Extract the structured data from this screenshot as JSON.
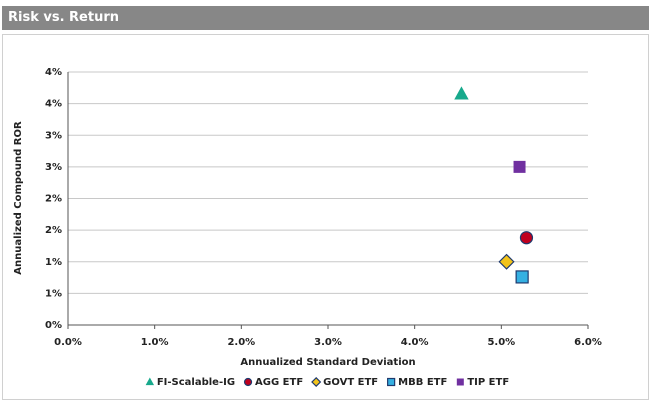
{
  "chart_data": {
    "type": "scatter",
    "title": "Risk vs. Return",
    "x_label": "Annualized Standard Deviation",
    "y_label": "Annualized Compound ROR",
    "xlim": [
      0,
      6
    ],
    "ylim": [
      0,
      4
    ],
    "xticks": [
      {
        "value": 0,
        "label": "0.0%"
      },
      {
        "value": 1,
        "label": "1.0%"
      },
      {
        "value": 2,
        "label": "2.0%"
      },
      {
        "value": 3,
        "label": "3.0%"
      },
      {
        "value": 4,
        "label": "4.0%"
      },
      {
        "value": 5,
        "label": "5.0%"
      },
      {
        "value": 6,
        "label": "6.0%"
      }
    ],
    "yticks": [
      {
        "value": 0,
        "label": "0%"
      },
      {
        "value": 0.5,
        "label": "1%"
      },
      {
        "value": 1,
        "label": "1%"
      },
      {
        "value": 1.5,
        "label": "2%"
      },
      {
        "value": 2,
        "label": "2%"
      },
      {
        "value": 2.5,
        "label": "3%"
      },
      {
        "value": 3,
        "label": "3%"
      },
      {
        "value": 3.5,
        "label": "4%"
      },
      {
        "value": 4,
        "label": "4%"
      }
    ],
    "grid": true,
    "series": [
      {
        "name": "FI-Scalable-IG",
        "marker": "triangle",
        "color": "#17a98c",
        "x": [
          4.54
        ],
        "values": [
          3.65
        ]
      },
      {
        "name": "AGG ETF",
        "marker": "circle",
        "color": "#c0001e",
        "x": [
          5.29
        ],
        "values": [
          1.38
        ]
      },
      {
        "name": "GOVT ETF",
        "marker": "diamond",
        "color": "#f2c31a",
        "x": [
          5.06
        ],
        "values": [
          1.0
        ]
      },
      {
        "name": "MBB ETF",
        "marker": "square",
        "color": "#35b0e2",
        "x": [
          5.24
        ],
        "values": [
          0.76
        ]
      },
      {
        "name": "TIP ETF",
        "marker": "square",
        "color": "#7030a0",
        "x": [
          5.21
        ],
        "values": [
          2.5
        ]
      }
    ]
  }
}
